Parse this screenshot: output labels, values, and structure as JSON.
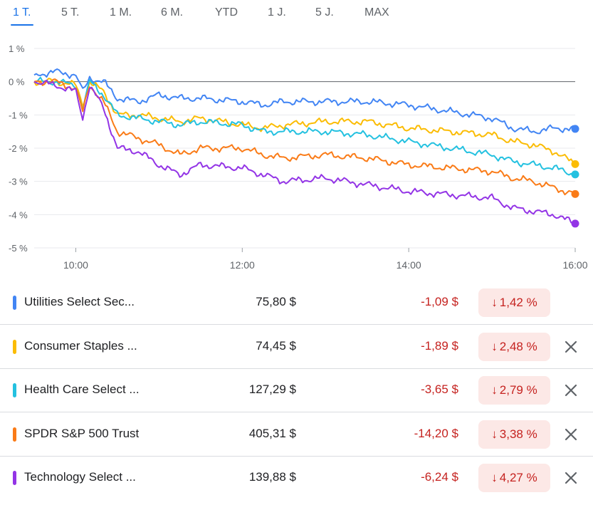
{
  "tabs": [
    {
      "label": "1 T.",
      "active": true
    },
    {
      "label": "5 T.",
      "active": false
    },
    {
      "label": "1 M.",
      "active": false
    },
    {
      "label": "6 M.",
      "active": false
    },
    {
      "label": "YTD",
      "active": false
    },
    {
      "label": "1 J.",
      "active": false
    },
    {
      "label": "5 J.",
      "active": false
    },
    {
      "label": "MAX",
      "active": false
    }
  ],
  "chart_data": {
    "type": "line",
    "ylim": [
      -5,
      1
    ],
    "yticks": [
      1,
      0,
      -1,
      -2,
      -3,
      -4,
      -5
    ],
    "ytick_labels": [
      "1 %",
      "0 %",
      "-1 %",
      "-2 %",
      "-3 %",
      "-4 %",
      "-5 %"
    ],
    "xlim": [
      "09:30",
      "16:00"
    ],
    "xticks": [
      "10:00",
      "12:00",
      "14:00",
      "16:00"
    ],
    "baseline": 0,
    "grid": true,
    "series": [
      {
        "name": "Utilities Select Sec...",
        "color": "#4285f4",
        "x": [
          "09:30",
          "09:45",
          "10:00",
          "10:05",
          "10:10",
          "10:20",
          "10:30",
          "10:45",
          "11:00",
          "11:15",
          "11:30",
          "12:00",
          "12:15",
          "12:30",
          "13:00",
          "13:30",
          "14:00",
          "14:30",
          "15:00",
          "15:15",
          "15:30",
          "15:45",
          "16:00"
        ],
        "y": [
          0.2,
          0.3,
          0.2,
          -0.3,
          0.1,
          0.0,
          -0.5,
          -0.6,
          -0.4,
          -0.5,
          -0.5,
          -0.6,
          -0.7,
          -0.6,
          -0.6,
          -0.6,
          -0.7,
          -0.9,
          -1.1,
          -1.4,
          -1.5,
          -1.4,
          -1.42
        ]
      },
      {
        "name": "Consumer Staples ...",
        "color": "#fbbc04",
        "x": [
          "09:30",
          "09:45",
          "10:00",
          "10:05",
          "10:10",
          "10:20",
          "10:30",
          "10:45",
          "11:00",
          "11:15",
          "11:30",
          "12:00",
          "12:15",
          "12:30",
          "13:00",
          "13:30",
          "14:00",
          "14:30",
          "15:00",
          "15:15",
          "15:30",
          "15:45",
          "16:00"
        ],
        "y": [
          0.0,
          0.0,
          -0.1,
          -0.7,
          0.0,
          -0.3,
          -1.0,
          -1.0,
          -1.1,
          -1.2,
          -1.1,
          -1.3,
          -1.4,
          -1.3,
          -1.2,
          -1.2,
          -1.4,
          -1.5,
          -1.6,
          -1.8,
          -1.9,
          -2.1,
          -2.48
        ]
      },
      {
        "name": "Health Care Select ...",
        "color": "#24c1e0",
        "x": [
          "09:30",
          "09:45",
          "10:00",
          "10:05",
          "10:10",
          "10:20",
          "10:30",
          "10:45",
          "11:00",
          "11:15",
          "11:30",
          "12:00",
          "12:15",
          "12:30",
          "13:00",
          "13:30",
          "14:00",
          "14:30",
          "15:00",
          "15:15",
          "15:30",
          "15:45",
          "16:00"
        ],
        "y": [
          0.0,
          0.0,
          -0.1,
          -0.8,
          0.0,
          -0.4,
          -1.0,
          -1.1,
          -1.2,
          -1.3,
          -1.2,
          -1.3,
          -1.5,
          -1.5,
          -1.5,
          -1.6,
          -1.8,
          -2.0,
          -2.2,
          -2.4,
          -2.5,
          -2.6,
          -2.79
        ]
      },
      {
        "name": "SPDR S&P 500 Trust",
        "color": "#fa7b17",
        "x": [
          "09:30",
          "09:45",
          "10:00",
          "10:05",
          "10:10",
          "10:20",
          "10:30",
          "10:45",
          "11:00",
          "11:15",
          "11:30",
          "12:00",
          "12:15",
          "12:30",
          "13:00",
          "13:30",
          "14:00",
          "14:30",
          "15:00",
          "15:15",
          "15:30",
          "15:45",
          "16:00"
        ],
        "y": [
          0.0,
          0.0,
          -0.2,
          -0.9,
          -0.1,
          -0.6,
          -1.5,
          -1.7,
          -1.9,
          -2.2,
          -2.0,
          -2.0,
          -2.2,
          -2.3,
          -2.2,
          -2.3,
          -2.5,
          -2.6,
          -2.7,
          -2.9,
          -3.0,
          -3.2,
          -3.38
        ]
      },
      {
        "name": "Technology Select ...",
        "color": "#9334e6",
        "x": [
          "09:30",
          "09:45",
          "10:00",
          "10:05",
          "10:10",
          "10:20",
          "10:30",
          "10:45",
          "11:00",
          "11:15",
          "11:30",
          "12:00",
          "12:15",
          "12:30",
          "13:00",
          "13:30",
          "14:00",
          "14:30",
          "15:00",
          "15:15",
          "15:30",
          "15:45",
          "16:00"
        ],
        "y": [
          0.0,
          -0.1,
          -0.3,
          -1.1,
          -0.1,
          -0.8,
          -2.0,
          -2.1,
          -2.5,
          -2.8,
          -2.5,
          -2.6,
          -2.8,
          -3.0,
          -2.9,
          -3.1,
          -3.3,
          -3.4,
          -3.5,
          -3.8,
          -3.9,
          -4.0,
          -4.27
        ]
      }
    ]
  },
  "rows": [
    {
      "name": "Utilities Select Sec...",
      "color": "#4285f4",
      "price": "75,80 $",
      "change": "-1,09 $",
      "percent": "1,42 %",
      "removable": false
    },
    {
      "name": "Consumer Staples ...",
      "color": "#fbbc04",
      "price": "74,45 $",
      "change": "-1,89 $",
      "percent": "2,48 %",
      "removable": true
    },
    {
      "name": "Health Care Select ...",
      "color": "#24c1e0",
      "price": "127,29 $",
      "change": "-3,65 $",
      "percent": "2,79 %",
      "removable": true
    },
    {
      "name": "SPDR S&P 500 Trust",
      "color": "#fa7b17",
      "price": "405,31 $",
      "change": "-14,20 $",
      "percent": "3,38 %",
      "removable": true
    },
    {
      "name": "Technology Select ...",
      "color": "#9334e6",
      "price": "139,88 $",
      "change": "-6,24 $",
      "percent": "4,27 %",
      "removable": true
    }
  ],
  "icons": {
    "down_arrow": "arrow-down-icon",
    "remove": "close-icon"
  }
}
